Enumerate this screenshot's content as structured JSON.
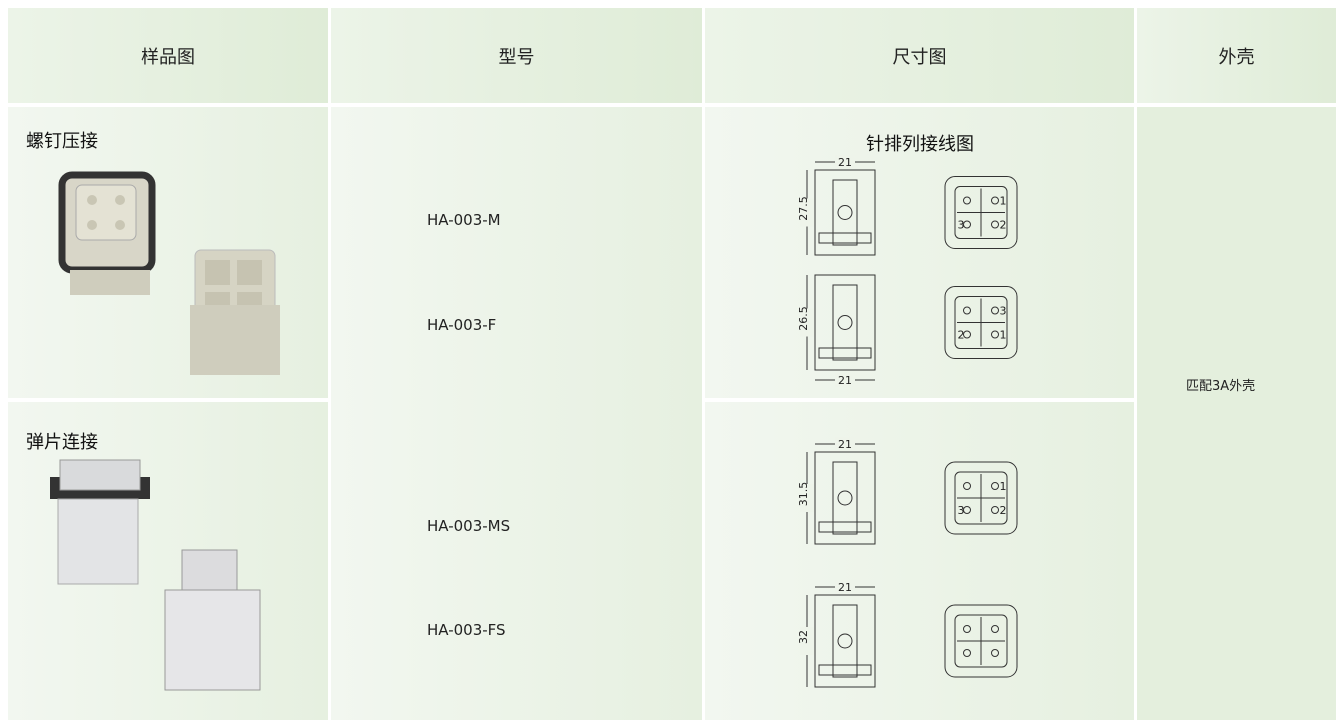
{
  "header": [
    "样品图",
    "型号",
    "尺寸图",
    "外壳"
  ],
  "groups": [
    {
      "label": "螺钉压接",
      "models": [
        "HA-003-M",
        "HA-003-F"
      ],
      "drawings_title": "针排列接线图",
      "drawings": [
        {
          "width": "21",
          "height": "27.5",
          "pins": [
            "1",
            "3",
            "2"
          ]
        },
        {
          "width": "21",
          "height": "26.5",
          "pins": [
            "3",
            "2",
            "1"
          ]
        }
      ]
    },
    {
      "label": "弹片连接",
      "models": [
        "HA-003-MS",
        "HA-003-FS"
      ],
      "drawings": [
        {
          "width": "21",
          "height": "31.5",
          "pins": [
            "1",
            "3",
            "2"
          ]
        },
        {
          "width": "21",
          "height": "32"
        }
      ]
    }
  ],
  "housing": "匹配3A外壳"
}
